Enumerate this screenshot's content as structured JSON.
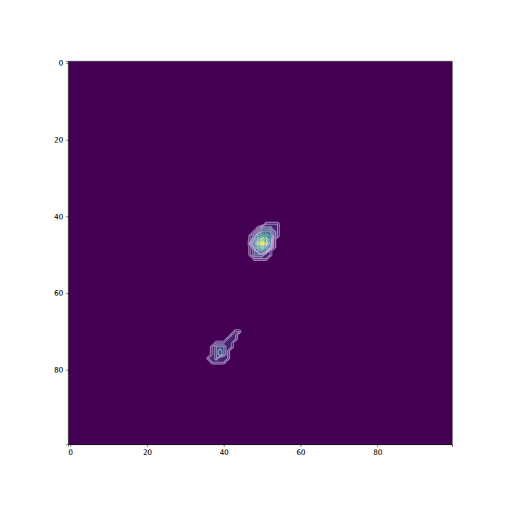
{
  "chart_data": {
    "type": "heatmap",
    "xlim": [
      -0.5,
      99.5
    ],
    "ylim": [
      99.5,
      -0.5
    ],
    "xticks": [
      0,
      20,
      40,
      60,
      80
    ],
    "yticks": [
      0,
      20,
      40,
      60,
      80
    ],
    "color_range": [
      0,
      10
    ],
    "contour_levels": [
      0.5,
      1,
      1.5,
      2,
      2.5,
      3,
      4,
      5,
      6,
      7,
      8,
      9
    ],
    "cells": [
      [
        51,
        42,
        1
      ],
      [
        52,
        42,
        1
      ],
      [
        53,
        42,
        1
      ],
      [
        54,
        42,
        1
      ],
      [
        49,
        43,
        1
      ],
      [
        50,
        43,
        2
      ],
      [
        51,
        43,
        2
      ],
      [
        52,
        43,
        2
      ],
      [
        53,
        43,
        1
      ],
      [
        54,
        43,
        1
      ],
      [
        48,
        44,
        1
      ],
      [
        49,
        44,
        2
      ],
      [
        50,
        44,
        3
      ],
      [
        51,
        44,
        3
      ],
      [
        52,
        44,
        3
      ],
      [
        53,
        44,
        2
      ],
      [
        54,
        44,
        1
      ],
      [
        47,
        45,
        1
      ],
      [
        48,
        45,
        2
      ],
      [
        49,
        45,
        4
      ],
      [
        50,
        45,
        5
      ],
      [
        51,
        45,
        5
      ],
      [
        52,
        45,
        4
      ],
      [
        53,
        45,
        2
      ],
      [
        54,
        45,
        1
      ],
      [
        47,
        46,
        1
      ],
      [
        48,
        46,
        3
      ],
      [
        49,
        46,
        6
      ],
      [
        50,
        46,
        8
      ],
      [
        51,
        46,
        7
      ],
      [
        52,
        46,
        4
      ],
      [
        53,
        46,
        1
      ],
      [
        47,
        47,
        2
      ],
      [
        48,
        47,
        4
      ],
      [
        49,
        47,
        8
      ],
      [
        50,
        47,
        10
      ],
      [
        51,
        47,
        8
      ],
      [
        52,
        47,
        4
      ],
      [
        53,
        47,
        1
      ],
      [
        47,
        48,
        1
      ],
      [
        48,
        48,
        3
      ],
      [
        49,
        48,
        6
      ],
      [
        50,
        48,
        7
      ],
      [
        51,
        48,
        5
      ],
      [
        52,
        48,
        3
      ],
      [
        53,
        48,
        1
      ],
      [
        47,
        49,
        1
      ],
      [
        48,
        49,
        2
      ],
      [
        49,
        49,
        4
      ],
      [
        50,
        49,
        4
      ],
      [
        51,
        49,
        3
      ],
      [
        52,
        49,
        1
      ],
      [
        47,
        50,
        1
      ],
      [
        48,
        50,
        2
      ],
      [
        49,
        50,
        2
      ],
      [
        50,
        50,
        2
      ],
      [
        51,
        50,
        1
      ],
      [
        52,
        50,
        1
      ],
      [
        48,
        51,
        1
      ],
      [
        49,
        51,
        1
      ],
      [
        50,
        51,
        1
      ],
      [
        51,
        51,
        1
      ],
      [
        43,
        70,
        1
      ],
      [
        44,
        70,
        1
      ],
      [
        42,
        71,
        1
      ],
      [
        43,
        71,
        1
      ],
      [
        41,
        72,
        1
      ],
      [
        42,
        72,
        1
      ],
      [
        43,
        72,
        1
      ],
      [
        38,
        73,
        1
      ],
      [
        39,
        73,
        1
      ],
      [
        40,
        73,
        1
      ],
      [
        41,
        73,
        1
      ],
      [
        42,
        73,
        1
      ],
      [
        37,
        74,
        1
      ],
      [
        38,
        74,
        2
      ],
      [
        39,
        74,
        2
      ],
      [
        40,
        74,
        2
      ],
      [
        41,
        74,
        1
      ],
      [
        42,
        74,
        1
      ],
      [
        37,
        75,
        1
      ],
      [
        38,
        75,
        2
      ],
      [
        39,
        75,
        3
      ],
      [
        40,
        75,
        2
      ],
      [
        41,
        75,
        1
      ],
      [
        37,
        76,
        1
      ],
      [
        38,
        76,
        2
      ],
      [
        39,
        76,
        3
      ],
      [
        40,
        76,
        2
      ],
      [
        41,
        76,
        1
      ],
      [
        36,
        77,
        1
      ],
      [
        37,
        77,
        1
      ],
      [
        38,
        77,
        2
      ],
      [
        39,
        77,
        1
      ],
      [
        40,
        77,
        1
      ],
      [
        41,
        77,
        1
      ],
      [
        37,
        78,
        1
      ],
      [
        38,
        78,
        1
      ],
      [
        39,
        78,
        1
      ],
      [
        40,
        78,
        1
      ]
    ]
  }
}
